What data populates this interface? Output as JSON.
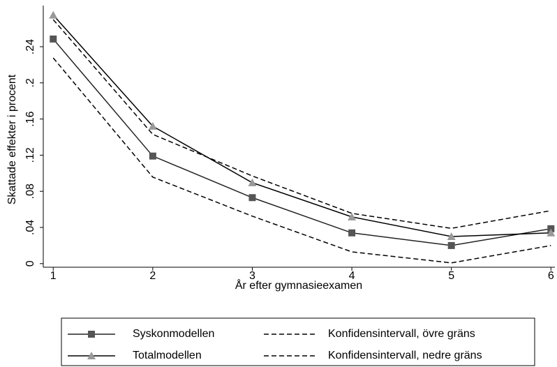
{
  "chart_data": {
    "type": "line",
    "x_label": "År efter gymnasieexamen",
    "y_label": "Skattade effekter i procent",
    "x": [
      1,
      2,
      3,
      4,
      5,
      6
    ],
    "xlim": [
      0.9,
      6.04
    ],
    "xticks": [
      1,
      2,
      3,
      4,
      5,
      6
    ],
    "ylim": [
      -0.004,
      0.2855
    ],
    "yticks": [
      0,
      {
        "value": 0.04,
        "label": ".04"
      },
      {
        "value": 0.08,
        "label": ".08"
      },
      {
        "value": 0.12,
        "label": ".12"
      },
      {
        "value": 0.16,
        "label": ".16"
      },
      {
        "value": 0.2,
        "label": ".2"
      },
      {
        "value": 0.24,
        "label": ".24"
      }
    ],
    "series": [
      {
        "name": "Syskonmodellen",
        "color": "#222222",
        "marker": "square",
        "marker_color": "#555555",
        "dash": false,
        "values": [
          0.2485,
          0.119,
          0.073,
          0.034,
          0.02,
          0.0386
        ]
      },
      {
        "name": "Totalmodellen",
        "color": "#000000",
        "marker": "triangle",
        "marker_color": "#999999",
        "dash": false,
        "values": [
          0.275,
          0.152,
          0.0895,
          0.0517,
          0.03,
          0.034
        ]
      },
      {
        "name": "Konfidensintervall, övre gräns",
        "color": "#000000",
        "marker": null,
        "dash": true,
        "values": [
          0.27,
          0.143,
          0.097,
          0.0556,
          0.039,
          0.0586
        ]
      },
      {
        "name": "Konfidensintervall, nedre gräns",
        "color": "#000000",
        "marker": null,
        "dash": true,
        "values": [
          0.2276,
          0.0957,
          0.0525,
          0.013,
          0.0008,
          0.02
        ]
      }
    ]
  }
}
